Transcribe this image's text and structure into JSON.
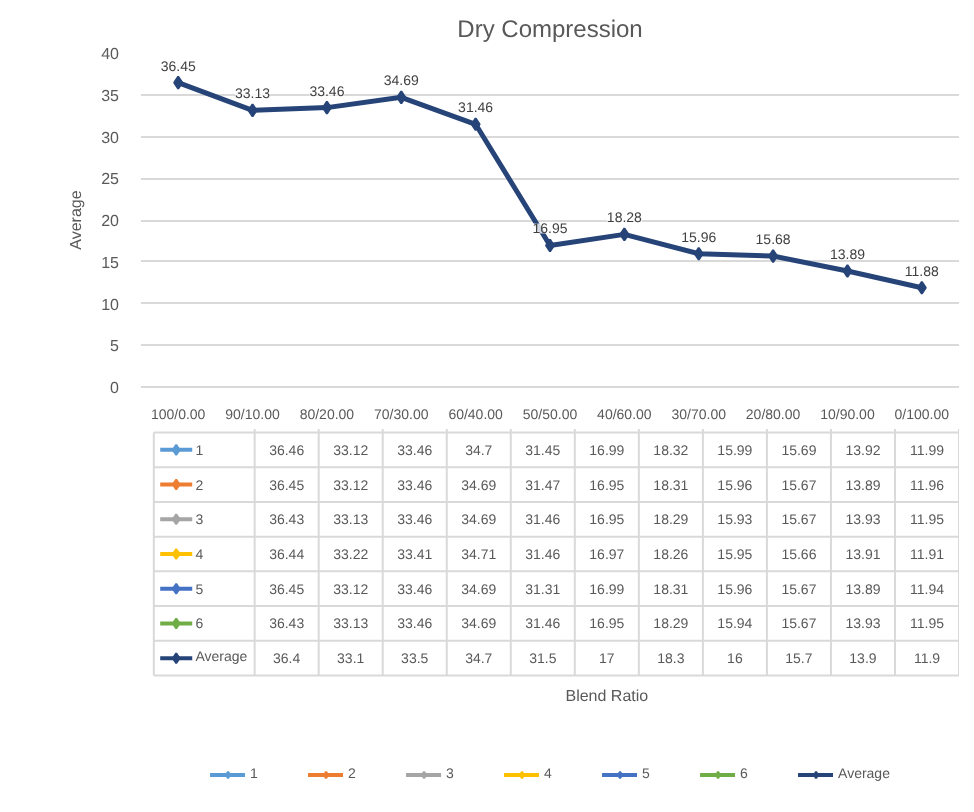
{
  "chart_data": {
    "type": "line",
    "title": "Dry Compression",
    "ylabel": "Average",
    "categories": [
      "100/0.00",
      "90/10.00",
      "80/20.00",
      "70/30.00",
      "60/40.00",
      "50/50.00",
      "40/60.00",
      "30/70.00",
      "20/80.00",
      "10/90.00",
      "0/100.00"
    ],
    "ylim": [
      0,
      40
    ],
    "yticks": [
      0,
      5,
      10,
      15,
      20,
      25,
      30,
      35,
      40
    ],
    "grid": "y",
    "legend": "bottom",
    "marker": "diamond",
    "data_labels": true,
    "annotations": [
      "Blend Ratio"
    ],
    "series": [
      {
        "name": "1",
        "color": "#5b9bd5",
        "values": [
          null,
          null,
          null,
          null,
          null,
          null,
          null,
          null,
          null,
          null,
          null
        ],
        "value_labels": [
          "36.46",
          "33.12",
          "33.46",
          "34.7",
          "31.45",
          "16.99",
          "18.32",
          "15.99",
          "15.69",
          "13.92",
          "11.99"
        ]
      },
      {
        "name": "2",
        "color": "#ed7d31",
        "values": [
          null,
          null,
          null,
          null,
          null,
          null,
          null,
          null,
          null,
          null,
          null
        ],
        "value_labels": [
          "36.45",
          "33.12",
          "33.46",
          "34.69",
          "31.47",
          "16.95",
          "18.31",
          "15.96",
          "15.67",
          "13.89",
          "11.96"
        ]
      },
      {
        "name": "3",
        "color": "#a5a5a5",
        "values": [
          null,
          null,
          null,
          null,
          null,
          null,
          null,
          null,
          null,
          null,
          null
        ],
        "value_labels": [
          "36.43",
          "33.13",
          "33.46",
          "34.69",
          "31.46",
          "16.95",
          "18.29",
          "15.93",
          "15.67",
          "13.93",
          "11.95"
        ]
      },
      {
        "name": "4",
        "color": "#ffc000",
        "values": [
          null,
          null,
          null,
          null,
          null,
          null,
          null,
          null,
          null,
          null,
          null
        ],
        "value_labels": [
          "36.44",
          "33.22",
          "33.41",
          "34.71",
          "31.46",
          "16.97",
          "18.26",
          "15.95",
          "15.66",
          "13.91",
          "11.91"
        ]
      },
      {
        "name": "5",
        "color": "#4472c4",
        "values": [
          null,
          null,
          null,
          null,
          null,
          null,
          null,
          null,
          null,
          null,
          null
        ],
        "value_labels": [
          "36.45",
          "33.12",
          "33.46",
          "34.69",
          "31.31",
          "16.99",
          "18.31",
          "15.96",
          "15.67",
          "13.89",
          "11.94"
        ]
      },
      {
        "name": "6",
        "color": "#70ad47",
        "values": [
          null,
          null,
          null,
          null,
          null,
          null,
          null,
          null,
          null,
          null,
          null
        ],
        "value_labels": [
          "36.43",
          "33.13",
          "33.46",
          "34.69",
          "31.46",
          "16.95",
          "18.29",
          "15.94",
          "15.67",
          "13.93",
          "11.95"
        ]
      },
      {
        "name": "Average",
        "color": "#264478",
        "values": [
          36.45,
          33.13,
          33.46,
          34.69,
          31.46,
          16.95,
          18.28,
          15.96,
          15.68,
          13.89,
          11.88
        ]
      },
      {
        "values": [
          null,
          null,
          null,
          null,
          null,
          null,
          null,
          null,
          null,
          null,
          null
        ],
        "value_labels": [
          "36.4",
          "33.1",
          "33.5",
          "34.7",
          "31.5",
          "17",
          "18.3",
          "16",
          "15.7",
          "13.9",
          "11.9"
        ]
      }
    ]
  }
}
